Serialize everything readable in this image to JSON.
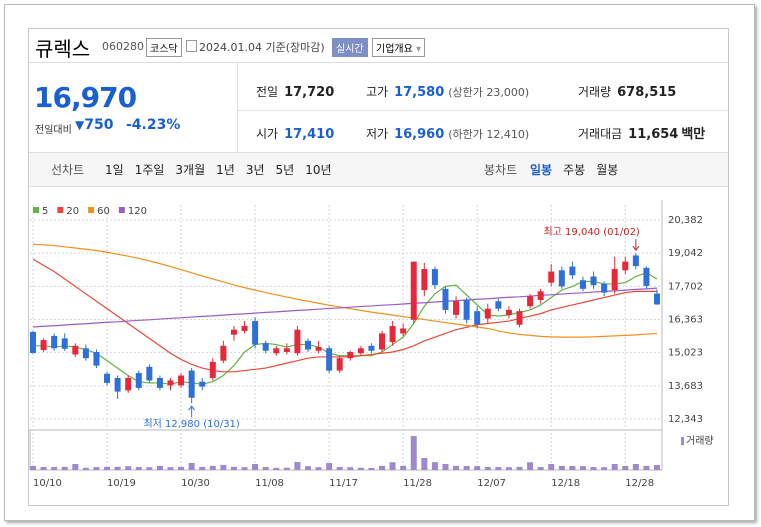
{
  "header": {
    "name": "큐렉스",
    "code": "060280",
    "market": "코스닥",
    "date": "2024.01.04 기준(장마감)",
    "realtime": "실시간",
    "company": "기업개요"
  },
  "quote": {
    "price": "16,970",
    "change_label": "전일대비",
    "change": "750",
    "rate": "-4.23%"
  },
  "stats": [
    {
      "label": "전일",
      "value": "17,720"
    },
    {
      "label": "고가",
      "value": "17,580",
      "note": "(상한가 23,000)"
    },
    {
      "label": "거래량",
      "value": "678,515"
    },
    {
      "label": "시가",
      "value": "17,410"
    },
    {
      "label": "저가",
      "value": "16,960",
      "note": "(하한가 12,410)"
    },
    {
      "label": "거래대금",
      "value": "11,654",
      "unit": "백만"
    }
  ],
  "tabs": {
    "line_label": "선차트",
    "line": [
      "1일",
      "1주일",
      "3개월",
      "1년",
      "3년",
      "5년",
      "10년"
    ],
    "candle_label": "봉차트",
    "candle": [
      "일봉",
      "주봉",
      "월봉"
    ],
    "active": "일봉"
  },
  "chart_data": {
    "type": "candlestick",
    "categories": [
      "10/10",
      null,
      null,
      null,
      null,
      null,
      null,
      "10/19",
      null,
      null,
      null,
      null,
      null,
      null,
      "10/30",
      null,
      null,
      null,
      null,
      null,
      null,
      "11/08",
      null,
      null,
      null,
      null,
      null,
      null,
      "11/17",
      null,
      null,
      null,
      null,
      null,
      null,
      "11/28",
      null,
      null,
      null,
      null,
      null,
      null,
      "12/07",
      null,
      null,
      null,
      null,
      null,
      null,
      "12/18",
      null,
      null,
      null,
      null,
      null,
      null,
      "12/28",
      null,
      null,
      null
    ],
    "open": [
      15860,
      15130,
      15700,
      15600,
      14950,
      15200,
      15050,
      14170,
      14000,
      13500,
      14200,
      14450,
      14000,
      13700,
      13700,
      14300,
      13850,
      14000,
      14700,
      15750,
      15900,
      16300,
      15400,
      15000,
      15050,
      15000,
      15500,
      15100,
      15200,
      14300,
      14800,
      15000,
      15300,
      15150,
      15450,
      15800,
      16350,
      17550,
      18400,
      17600,
      16550,
      17150,
      16700,
      16400,
      17100,
      16550,
      16150,
      16900,
      17150,
      17850,
      18350,
      18500,
      17950,
      18100,
      17800,
      17550,
      18350,
      18950,
      18450,
      17410
    ],
    "high": [
      15900,
      15600,
      15800,
      15800,
      15400,
      15350,
      15150,
      14250,
      14100,
      14100,
      14300,
      14550,
      14100,
      14000,
      14200,
      14400,
      14000,
      14800,
      15500,
      16100,
      16300,
      16450,
      15500,
      15300,
      15400,
      16100,
      15600,
      15500,
      15300,
      14900,
      15100,
      15300,
      15400,
      15900,
      16300,
      16200,
      18700,
      18650,
      18500,
      17700,
      17300,
      17250,
      16900,
      17000,
      17200,
      16900,
      16800,
      17400,
      17600,
      18600,
      18500,
      18700,
      18100,
      18300,
      17900,
      18900,
      18900,
      19040,
      18500,
      17580
    ],
    "low": [
      14980,
      15050,
      15100,
      15100,
      14850,
      14700,
      14400,
      13700,
      13150,
      13400,
      13500,
      13800,
      13500,
      13500,
      13600,
      12980,
      13500,
      13900,
      14600,
      15500,
      15800,
      15200,
      15000,
      14900,
      14950,
      14900,
      15050,
      15000,
      14200,
      14200,
      14700,
      14900,
      15000,
      15050,
      15300,
      15700,
      16200,
      17300,
      17600,
      16600,
      16400,
      16200,
      16000,
      16200,
      16700,
      16400,
      16050,
      16800,
      17000,
      17700,
      17600,
      18000,
      17500,
      17600,
      17300,
      17400,
      18200,
      18400,
      17600,
      16960
    ],
    "close": [
      15010,
      15530,
      15200,
      15180,
      15300,
      14800,
      14500,
      13800,
      13450,
      14000,
      13600,
      13900,
      13600,
      13900,
      14100,
      13200,
      13650,
      14650,
      15300,
      15950,
      16100,
      15350,
      15100,
      15200,
      15200,
      15950,
      15150,
      15250,
      14300,
      14800,
      15050,
      15200,
      15100,
      15800,
      16100,
      16000,
      18700,
      18400,
      17750,
      16750,
      17100,
      16350,
      16150,
      16800,
      16800,
      16750,
      16700,
      17300,
      17500,
      18300,
      17700,
      18150,
      17600,
      17750,
      17450,
      18400,
      18700,
      18520,
      17720,
      16970
    ],
    "up_color": "#e8283a",
    "down_color": "#2e6fd8",
    "series": [
      {
        "name": "5",
        "color": "#5fb340",
        "values": [
          15300,
          15300,
          15250,
          15300,
          15250,
          15150,
          15000,
          14700,
          14400,
          14100,
          13850,
          13800,
          13800,
          13750,
          13850,
          13800,
          13750,
          13850,
          14100,
          14500,
          15050,
          15350,
          15400,
          15350,
          15250,
          15350,
          15350,
          15250,
          15000,
          14900,
          14900,
          14900,
          14900,
          15050,
          15350,
          15650,
          16200,
          16900,
          17400,
          17700,
          17750,
          17350,
          16950,
          16550,
          16500,
          16550,
          16650,
          16750,
          16950,
          17250,
          17550,
          17700,
          17900,
          17900,
          17800,
          17800,
          17850,
          18100,
          18250,
          18000
        ]
      },
      {
        "name": "20",
        "color": "#e8483a",
        "values": [
          18800,
          18550,
          18300,
          18000,
          17700,
          17400,
          17100,
          16800,
          16500,
          16200,
          15900,
          15600,
          15300,
          15000,
          14750,
          14550,
          14400,
          14300,
          14250,
          14250,
          14300,
          14350,
          14400,
          14500,
          14600,
          14700,
          14800,
          14850,
          14850,
          14850,
          14850,
          14900,
          14950,
          15000,
          15050,
          15150,
          15300,
          15500,
          15650,
          15800,
          15950,
          16050,
          16150,
          16200,
          16250,
          16300,
          16400,
          16500,
          16600,
          16750,
          16850,
          16950,
          17050,
          17150,
          17250,
          17350,
          17450,
          17500,
          17500,
          17500
        ]
      },
      {
        "name": "60",
        "color": "#f0901e",
        "values": [
          19400,
          19380,
          19350,
          19300,
          19250,
          19200,
          19150,
          19080,
          19000,
          18920,
          18830,
          18730,
          18620,
          18500,
          18380,
          18250,
          18120,
          18000,
          17880,
          17760,
          17650,
          17550,
          17450,
          17360,
          17270,
          17180,
          17100,
          17020,
          16940,
          16870,
          16800,
          16730,
          16660,
          16600,
          16540,
          16480,
          16420,
          16360,
          16300,
          16240,
          16180,
          16120,
          16060,
          16000,
          15900,
          15820,
          15760,
          15720,
          15680,
          15660,
          15650,
          15650,
          15650,
          15660,
          15680,
          15700,
          15720,
          15740,
          15770,
          15800
        ]
      },
      {
        "name": "120",
        "color": "#9b5cc4",
        "values": [
          16060,
          16090,
          16110,
          16140,
          16170,
          16190,
          16220,
          16250,
          16270,
          16300,
          16330,
          16350,
          16380,
          16410,
          16430,
          16460,
          16490,
          16510,
          16540,
          16570,
          16590,
          16620,
          16650,
          16670,
          16700,
          16730,
          16750,
          16780,
          16810,
          16830,
          16860,
          16890,
          16910,
          16940,
          16960,
          16990,
          17020,
          17040,
          17070,
          17100,
          17120,
          17150,
          17180,
          17200,
          17230,
          17260,
          17280,
          17310,
          17340,
          17360,
          17390,
          17420,
          17440,
          17470,
          17500,
          17520,
          17550,
          17580,
          17600,
          17630
        ]
      }
    ],
    "volume": {
      "name": "거래량",
      "color": "#9d89cc",
      "ylim": [
        0,
        5150000
      ],
      "values": [
        540000,
        410000,
        400000,
        420000,
        810000,
        300000,
        390000,
        420000,
        430000,
        520000,
        400000,
        380000,
        560000,
        380000,
        420000,
        950000,
        410000,
        560000,
        690000,
        420000,
        380000,
        820000,
        400000,
        290000,
        300000,
        1080000,
        520000,
        380000,
        940000,
        410000,
        380000,
        300000,
        280000,
        560000,
        1050000,
        560000,
        4600000,
        1620000,
        1060000,
        810000,
        560000,
        540000,
        520000,
        410000,
        400000,
        380000,
        420000,
        1050000,
        400000,
        810000,
        560000,
        540000,
        520000,
        400000,
        380000,
        820000,
        540000,
        810000,
        560000,
        678515
      ]
    },
    "ylim": [
      12343,
      20382
    ],
    "yticks": [
      {
        "value": 20382,
        "label": "20,382"
      },
      {
        "value": 19042,
        "label": "19,042"
      },
      {
        "value": 17702,
        "label": "17,702"
      },
      {
        "value": 16363,
        "label": "16,363"
      },
      {
        "value": 15023,
        "label": "15,023"
      },
      {
        "value": 13683,
        "label": "13,683"
      },
      {
        "value": 12343,
        "label": "12,343"
      }
    ],
    "grid": true,
    "annotations": [
      {
        "text": "최고 19,040 (01/02)",
        "value": 19040
      },
      {
        "text": "최저 12,980 (10/31)",
        "value": 12980
      }
    ]
  }
}
